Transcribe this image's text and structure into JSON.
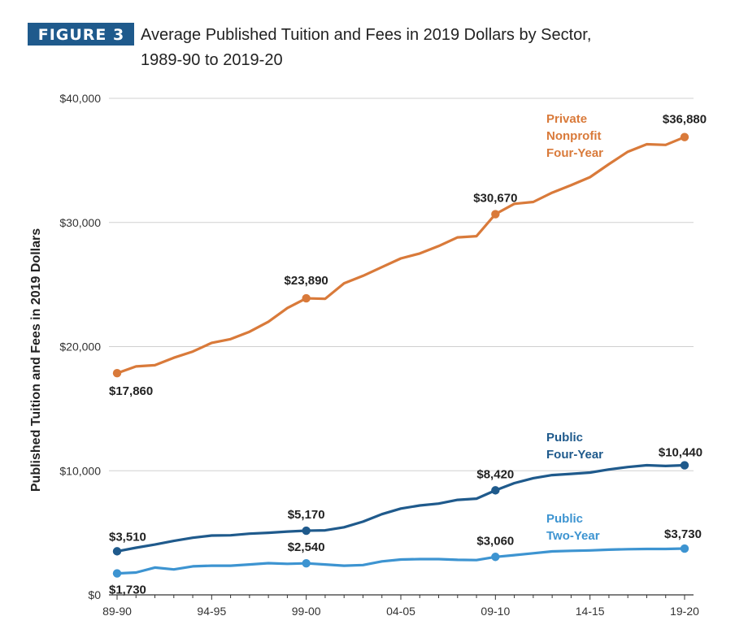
{
  "figure": {
    "badge": "FIGURE 3",
    "title_line1": "Average Published Tuition and Fees in 2019 Dollars by Sector,",
    "title_line2": "1989-90 to 2019-20"
  },
  "colors": {
    "badge_bg": "#1f5a8c",
    "grid": "#d0d0d0",
    "axis": "#333333"
  },
  "chart_data": {
    "type": "line",
    "ylabel": "Published Tuition and Fees in 2019 Dollars",
    "ylim": [
      0,
      40000
    ],
    "yticks": [
      {
        "value": 0,
        "label": "$0"
      },
      {
        "value": 10000,
        "label": "$10,000"
      },
      {
        "value": 20000,
        "label": "$20,000"
      },
      {
        "value": 30000,
        "label": "$30,000"
      },
      {
        "value": 40000,
        "label": "$40,000"
      }
    ],
    "x": [
      "89-90",
      "90-91",
      "91-92",
      "92-93",
      "93-94",
      "94-95",
      "95-96",
      "96-97",
      "97-98",
      "98-99",
      "99-00",
      "00-01",
      "01-02",
      "02-03",
      "03-04",
      "04-05",
      "05-06",
      "06-07",
      "07-08",
      "08-09",
      "09-10",
      "10-11",
      "11-12",
      "12-13",
      "13-14",
      "14-15",
      "15-16",
      "16-17",
      "17-18",
      "18-19",
      "19-20"
    ],
    "xtick_labels": [
      "89-90",
      "94-95",
      "99-00",
      "04-05",
      "09-10",
      "14-15",
      "19-20"
    ],
    "xtick_indices": [
      0,
      5,
      10,
      15,
      20,
      25,
      30
    ],
    "grid": true,
    "series": [
      {
        "name": "Private Nonprofit Four-Year",
        "label_lines": [
          "Private",
          "Nonprofit",
          "Four-Year"
        ],
        "color": "#d97a3a",
        "values": [
          17860,
          18400,
          18500,
          19100,
          19600,
          20300,
          20600,
          21200,
          22000,
          23100,
          23890,
          23850,
          25100,
          25700,
          26400,
          27100,
          27500,
          28100,
          28800,
          28900,
          30670,
          31500,
          31650,
          32400,
          33000,
          33650,
          34700,
          35700,
          36300,
          36250,
          36880
        ],
        "labeled_points": [
          {
            "index": 0,
            "label": "$17,860"
          },
          {
            "index": 10,
            "label": "$23,890"
          },
          {
            "index": 20,
            "label": "$30,670"
          },
          {
            "index": 30,
            "label": "$36,880"
          }
        ]
      },
      {
        "name": "Public Four-Year",
        "label_lines": [
          "Public",
          "Four-Year"
        ],
        "color": "#1f5a8c",
        "values": [
          3510,
          3800,
          4050,
          4350,
          4600,
          4780,
          4800,
          4930,
          5000,
          5100,
          5170,
          5200,
          5450,
          5900,
          6500,
          6950,
          7200,
          7350,
          7650,
          7750,
          8420,
          9000,
          9400,
          9650,
          9750,
          9850,
          10100,
          10300,
          10440,
          10380,
          10440
        ],
        "labeled_points": [
          {
            "index": 0,
            "label": "$3,510"
          },
          {
            "index": 10,
            "label": "$5,170"
          },
          {
            "index": 20,
            "label": "$8,420"
          },
          {
            "index": 30,
            "label": "$10,440"
          }
        ]
      },
      {
        "name": "Public Two-Year",
        "label_lines": [
          "Public",
          "Two-Year"
        ],
        "color": "#3d94d1",
        "values": [
          1730,
          1800,
          2200,
          2050,
          2300,
          2350,
          2350,
          2450,
          2550,
          2500,
          2540,
          2450,
          2350,
          2400,
          2700,
          2850,
          2880,
          2880,
          2820,
          2800,
          3060,
          3200,
          3350,
          3500,
          3550,
          3580,
          3640,
          3680,
          3700,
          3700,
          3730
        ],
        "labeled_points": [
          {
            "index": 0,
            "label": "$1,730"
          },
          {
            "index": 10,
            "label": "$2,540"
          },
          {
            "index": 20,
            "label": "$3,060"
          },
          {
            "index": 30,
            "label": "$3,730"
          }
        ]
      }
    ]
  }
}
